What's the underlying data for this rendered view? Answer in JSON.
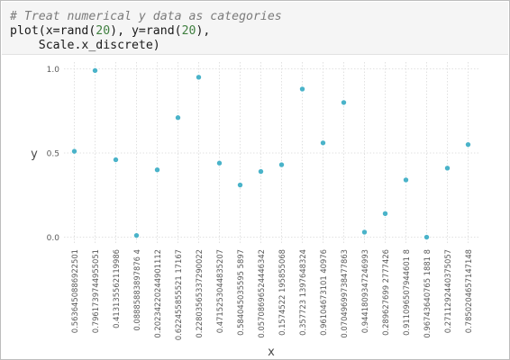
{
  "code": {
    "comment": "# Treat numerical y data as categories",
    "line2_parts": [
      "plot(x=rand(",
      "20",
      "), y=rand(",
      "20",
      "),"
    ],
    "line3": "    Scale.x_discrete)"
  },
  "colors": {
    "point": "#4ab3c9",
    "grid": "#d9d9d9",
    "tick_text": "#5a5a5a",
    "axis_label": "#4a4a4a"
  },
  "chart_data": {
    "type": "scatter",
    "title": "",
    "xlabel": "x",
    "ylabel": "y",
    "ylim": [
      -0.04,
      1.04
    ],
    "yticks": [
      "0.0",
      "0.5",
      "1.0"
    ],
    "grid": true,
    "x_scale": "discrete",
    "categories": [
      "0.5636450886922501",
      "0.7961739744955051",
      "0.413135562119986",
      "0.08885883897876 4",
      "0.20234220244901112",
      "0.622455855521 17167",
      "0.22803565337290022",
      "0.4715253044835207",
      "0.584045035595 5897",
      "0.05708696524446342",
      "0.1574522 195855068",
      "0.357723 1397648324",
      "0.96104673101 40976",
      "0.07049699738477863",
      "0.9441809347246993",
      "0.289627699 2777426",
      "0.911096507944601 8",
      "0.96743640765 1881 8",
      "0.2711292440375057",
      "0.7850204657147148"
    ],
    "series": [
      {
        "values": [
          0.51,
          0.99,
          0.46,
          0.01,
          0.4,
          0.71,
          0.95,
          0.44,
          0.31,
          0.39,
          0.43,
          0.88,
          0.56,
          0.8,
          0.03,
          0.14,
          0.34,
          0.0,
          0.41,
          0.55
        ]
      }
    ]
  }
}
